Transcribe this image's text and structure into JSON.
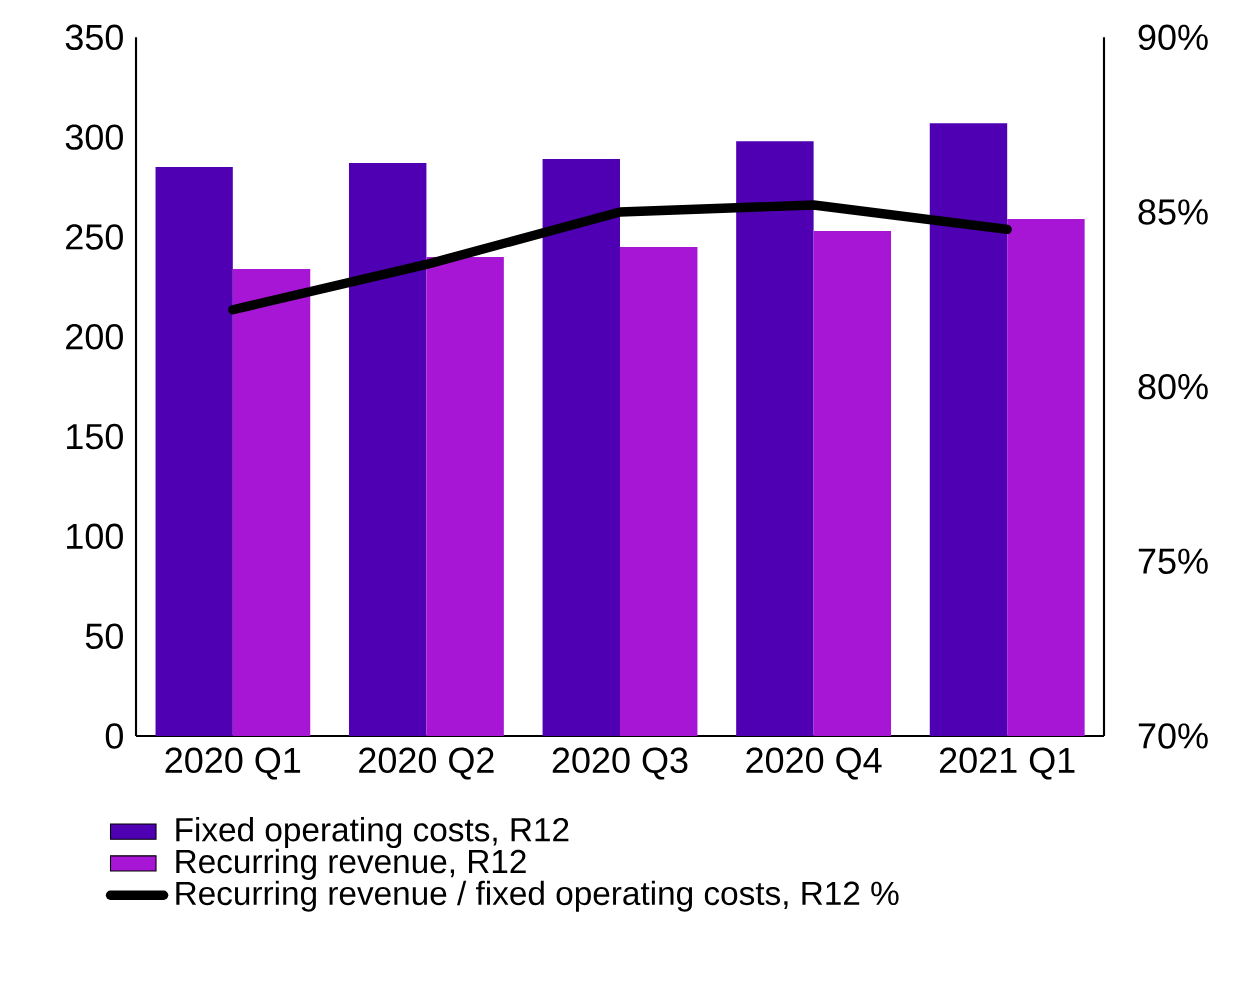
{
  "chart_data": {
    "type": "bar",
    "categories": [
      "2020 Q1",
      "2020 Q2",
      "2020 Q3",
      "2020 Q4",
      "2021 Q1"
    ],
    "series": [
      {
        "name": "Fixed operating costs, R12",
        "color": "#4f00b2",
        "values": [
          285,
          287,
          289,
          298,
          307
        ]
      },
      {
        "name": "Recurring revenue, R12",
        "color": "#a716d4",
        "values": [
          234,
          240,
          245,
          253,
          259
        ]
      },
      {
        "name": "Recurring revenue / fixed operating costs, R12 %",
        "type": "line",
        "axis": "y2",
        "color": "#000000",
        "values": [
          82.2,
          83.5,
          85.0,
          85.2,
          84.5
        ]
      }
    ],
    "ylim": [
      0,
      350
    ],
    "yticks": [
      0,
      50,
      100,
      150,
      200,
      250,
      300,
      350
    ],
    "y2lim": [
      70,
      90
    ],
    "y2ticks": [
      {
        "value": 70,
        "label": "70%"
      },
      {
        "value": 75,
        "label": "75%"
      },
      {
        "value": 80,
        "label": "80%"
      },
      {
        "value": 85,
        "label": "85%"
      },
      {
        "value": 90,
        "label": "90%"
      }
    ],
    "legend": "bottom",
    "grid": false
  }
}
